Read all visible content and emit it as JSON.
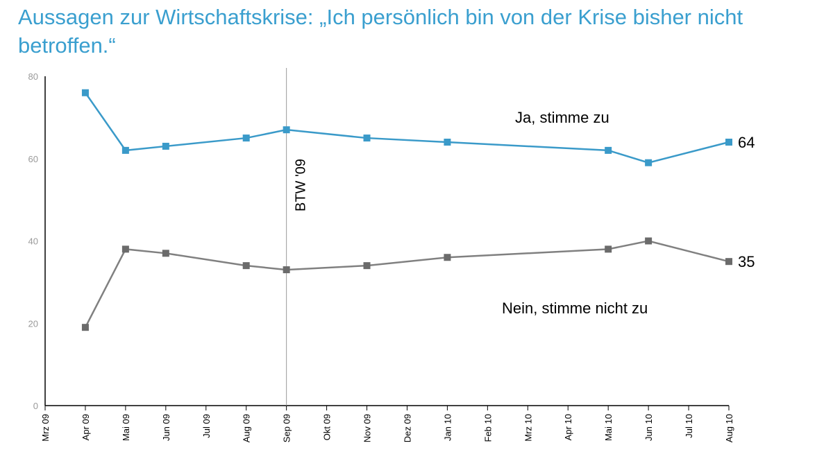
{
  "title": "Aussagen zur Wirtschaftskrise: „Ich persönlich bin von der Krise bisher nicht betroffen.“",
  "chart_data": {
    "type": "line",
    "title": "Aussagen zur Wirtschaftskrise: „Ich persönlich bin von der Krise bisher nicht betroffen.“",
    "categories": [
      "Mrz 09",
      "Apr 09",
      "Mai 09",
      "Jun 09",
      "Jul 09",
      "Aug 09",
      "Sep 09",
      "Okt 09",
      "Nov 09",
      "Dez 09",
      "Jan 10",
      "Feb 10",
      "Mrz 10",
      "Apr 10",
      "Mai 10",
      "Jun 10",
      "Jul 10",
      "Aug 10"
    ],
    "ylim": [
      0,
      80
    ],
    "yticks": [
      0,
      20,
      40,
      60,
      80
    ],
    "grid": false,
    "series": [
      {
        "name": "Ja, stimme zu",
        "color": "#3a9ac9",
        "marker_color": "#3a9ac9",
        "values": [
          null,
          76,
          62,
          63,
          null,
          65,
          67,
          null,
          65,
          null,
          64,
          null,
          null,
          null,
          62,
          59,
          null,
          64
        ],
        "end_label": "64"
      },
      {
        "name": "Nein, stimme nicht zu",
        "color": "#808080",
        "marker_color": "#6b6b6b",
        "values": [
          null,
          19,
          38,
          37,
          null,
          34,
          33,
          null,
          34,
          null,
          36,
          null,
          null,
          null,
          38,
          40,
          null,
          35
        ],
        "end_label": "35"
      }
    ],
    "annotations": [
      {
        "label": "BTW '09",
        "x": "Sep 09",
        "type": "vertical-line"
      }
    ]
  }
}
